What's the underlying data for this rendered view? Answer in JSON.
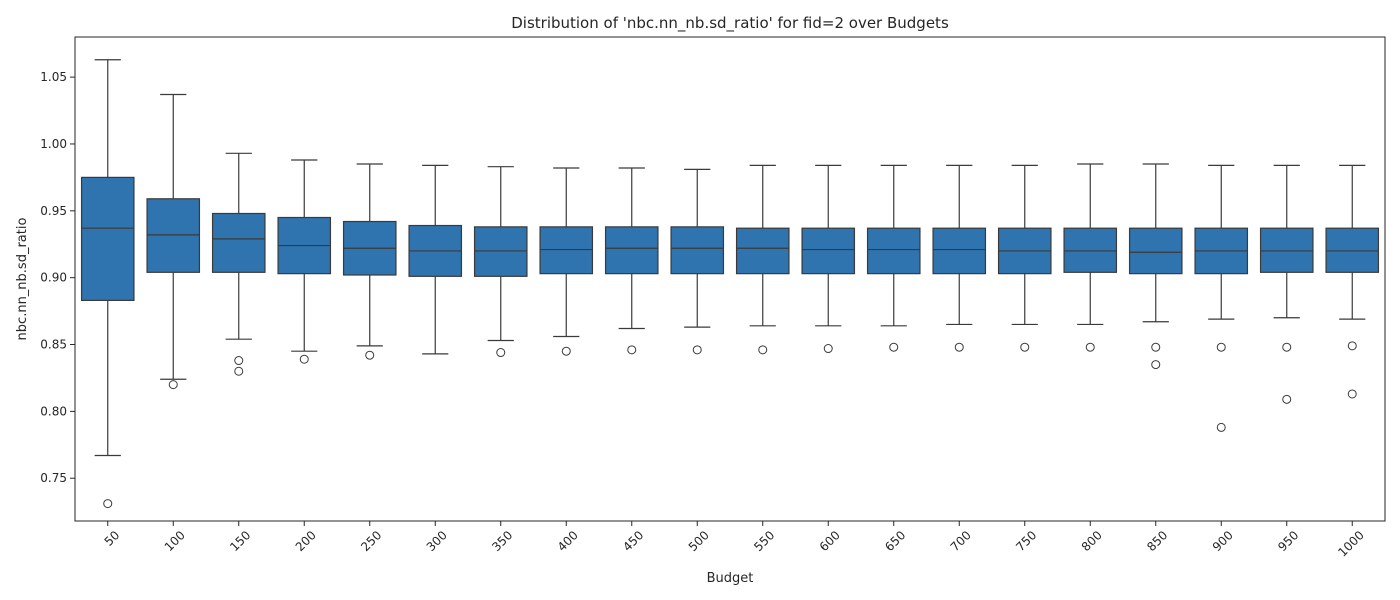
{
  "chart_data": {
    "type": "boxplot",
    "title": "Distribution of 'nbc.nn_nb.sd_ratio' for fid=2 over Budgets",
    "xlabel": "Budget",
    "ylabel": "nbc.nn_nb.sd_ratio",
    "ylim": [
      0.718,
      1.08
    ],
    "yticks": [
      "0.75",
      "0.80",
      "0.85",
      "0.90",
      "0.95",
      "1.00",
      "1.05"
    ],
    "box_color": "#2f74ae",
    "line_color": "#3a3a3a",
    "grid": false,
    "categories": [
      "50",
      "100",
      "150",
      "200",
      "250",
      "300",
      "350",
      "400",
      "450",
      "500",
      "550",
      "600",
      "650",
      "700",
      "750",
      "800",
      "850",
      "900",
      "950",
      "1000"
    ],
    "boxes": [
      {
        "category": "50",
        "whisker_low": 0.767,
        "q1": 0.883,
        "median": 0.937,
        "q3": 0.975,
        "whisker_high": 1.063,
        "outliers": [
          0.731
        ]
      },
      {
        "category": "100",
        "whisker_low": 0.824,
        "q1": 0.904,
        "median": 0.932,
        "q3": 0.959,
        "whisker_high": 1.037,
        "outliers": [
          0.82
        ]
      },
      {
        "category": "150",
        "whisker_low": 0.854,
        "q1": 0.904,
        "median": 0.929,
        "q3": 0.948,
        "whisker_high": 0.993,
        "outliers": [
          0.838,
          0.83
        ]
      },
      {
        "category": "200",
        "whisker_low": 0.845,
        "q1": 0.903,
        "median": 0.924,
        "q3": 0.945,
        "whisker_high": 0.988,
        "outliers": [
          0.839
        ]
      },
      {
        "category": "250",
        "whisker_low": 0.849,
        "q1": 0.902,
        "median": 0.922,
        "q3": 0.942,
        "whisker_high": 0.985,
        "outliers": [
          0.842
        ]
      },
      {
        "category": "300",
        "whisker_low": 0.843,
        "q1": 0.901,
        "median": 0.92,
        "q3": 0.939,
        "whisker_high": 0.984,
        "outliers": []
      },
      {
        "category": "350",
        "whisker_low": 0.853,
        "q1": 0.901,
        "median": 0.92,
        "q3": 0.938,
        "whisker_high": 0.983,
        "outliers": [
          0.844
        ]
      },
      {
        "category": "400",
        "whisker_low": 0.856,
        "q1": 0.903,
        "median": 0.921,
        "q3": 0.938,
        "whisker_high": 0.982,
        "outliers": [
          0.845
        ]
      },
      {
        "category": "450",
        "whisker_low": 0.862,
        "q1": 0.903,
        "median": 0.922,
        "q3": 0.938,
        "whisker_high": 0.982,
        "outliers": [
          0.846
        ]
      },
      {
        "category": "500",
        "whisker_low": 0.863,
        "q1": 0.903,
        "median": 0.922,
        "q3": 0.938,
        "whisker_high": 0.981,
        "outliers": [
          0.846
        ]
      },
      {
        "category": "550",
        "whisker_low": 0.864,
        "q1": 0.903,
        "median": 0.922,
        "q3": 0.937,
        "whisker_high": 0.984,
        "outliers": [
          0.846
        ]
      },
      {
        "category": "600",
        "whisker_low": 0.864,
        "q1": 0.903,
        "median": 0.921,
        "q3": 0.937,
        "whisker_high": 0.984,
        "outliers": [
          0.847
        ]
      },
      {
        "category": "650",
        "whisker_low": 0.864,
        "q1": 0.903,
        "median": 0.921,
        "q3": 0.937,
        "whisker_high": 0.984,
        "outliers": [
          0.848
        ]
      },
      {
        "category": "700",
        "whisker_low": 0.865,
        "q1": 0.903,
        "median": 0.921,
        "q3": 0.937,
        "whisker_high": 0.984,
        "outliers": [
          0.848
        ]
      },
      {
        "category": "750",
        "whisker_low": 0.865,
        "q1": 0.903,
        "median": 0.92,
        "q3": 0.937,
        "whisker_high": 0.984,
        "outliers": [
          0.848
        ]
      },
      {
        "category": "800",
        "whisker_low": 0.865,
        "q1": 0.904,
        "median": 0.92,
        "q3": 0.937,
        "whisker_high": 0.985,
        "outliers": [
          0.848
        ]
      },
      {
        "category": "850",
        "whisker_low": 0.867,
        "q1": 0.903,
        "median": 0.919,
        "q3": 0.937,
        "whisker_high": 0.985,
        "outliers": [
          0.848,
          0.835
        ]
      },
      {
        "category": "900",
        "whisker_low": 0.869,
        "q1": 0.903,
        "median": 0.92,
        "q3": 0.937,
        "whisker_high": 0.984,
        "outliers": [
          0.848,
          0.788
        ]
      },
      {
        "category": "950",
        "whisker_low": 0.87,
        "q1": 0.904,
        "median": 0.92,
        "q3": 0.937,
        "whisker_high": 0.984,
        "outliers": [
          0.848,
          0.809
        ]
      },
      {
        "category": "1000",
        "whisker_low": 0.869,
        "q1": 0.904,
        "median": 0.92,
        "q3": 0.937,
        "whisker_high": 0.984,
        "outliers": [
          0.849,
          0.813
        ]
      }
    ]
  }
}
